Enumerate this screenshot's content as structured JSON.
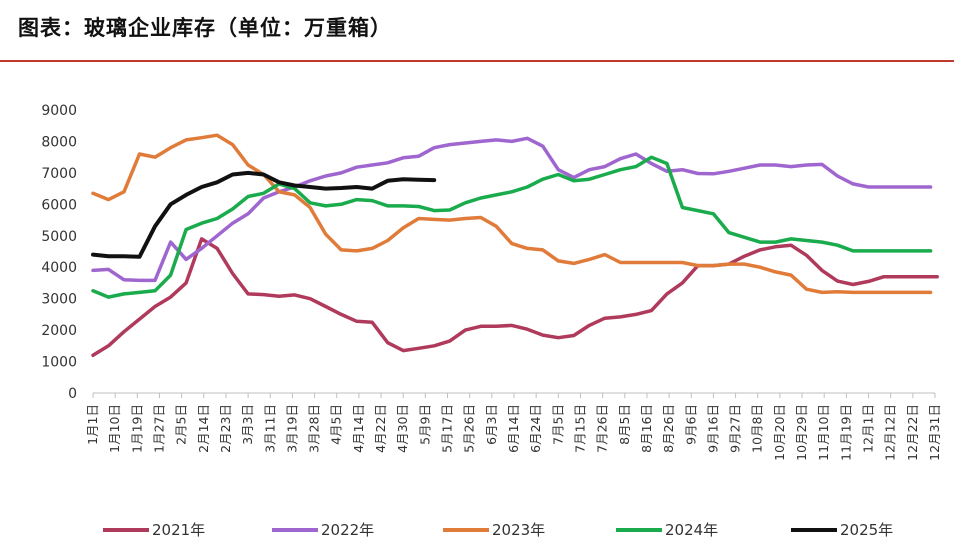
{
  "header": {
    "title": "图表：玻璃企业库存（单位：万重箱）",
    "rule_color": "#c0392b"
  },
  "chart_data": {
    "type": "line",
    "title": "图表：玻璃企业库存（单位：万重箱）",
    "xlabel": "",
    "ylabel": "",
    "ylim": [
      0,
      9000
    ],
    "yticks": [
      0,
      1000,
      2000,
      3000,
      4000,
      5000,
      6000,
      7000,
      8000,
      9000
    ],
    "grid": false,
    "legend_position": "bottom",
    "categories": [
      "1月1日",
      "1月10日",
      "1月19日",
      "1月27日",
      "2月5日",
      "2月14日",
      "2月23日",
      "3月3日",
      "3月11日",
      "3月19日",
      "3月28日",
      "4月5日",
      "4月14日",
      "4月22日",
      "4月30日",
      "5月9日",
      "5月17日",
      "5月26日",
      "6月3日",
      "6月14日",
      "6月24日",
      "7月5日",
      "7月15日",
      "7月26日",
      "8月5日",
      "8月16日",
      "8月26日",
      "9月6日",
      "9月16日",
      "9月27日",
      "10月8日",
      "10月20日",
      "10月29日",
      "11月10日",
      "11月19日",
      "12月1日",
      "12月12日",
      "12月22日",
      "12月31日"
    ],
    "series": [
      {
        "name": "2021年",
        "color": "#b03a5b",
        "x": [
          0,
          0.7,
          1.4,
          2.1,
          2.8,
          3.5,
          4.2,
          4.9,
          5.6,
          6.3,
          7,
          7.7,
          8.4,
          9.1,
          9.8,
          10.5,
          11.2,
          11.9,
          12.6,
          13.3,
          14,
          14.7,
          15.4,
          16.1,
          16.8,
          17.5,
          18.2,
          18.9,
          19.6,
          20.3,
          21,
          21.7,
          22.4,
          23.1,
          23.8,
          24.5,
          25.2,
          25.9,
          26.6,
          27.3,
          28,
          28.7,
          29.4,
          30.1,
          30.8,
          31.5,
          32.2,
          32.9,
          33.6,
          34.3,
          35,
          35.7,
          36.4,
          37.1,
          37.8,
          38.1
        ],
        "y": [
          1200,
          1500,
          1950,
          2350,
          2750,
          3050,
          3500,
          4900,
          4600,
          3800,
          3150,
          3130,
          3080,
          3120,
          3000,
          2750,
          2500,
          2280,
          2250,
          1600,
          1350,
          1420,
          1500,
          1650,
          2000,
          2120,
          2120,
          2150,
          2030,
          1840,
          1760,
          1830,
          2150,
          2380,
          2420,
          2500,
          2620,
          3150,
          3500,
          4050,
          4050,
          4100,
          4350,
          4550,
          4650,
          4700,
          4380,
          3900,
          3560,
          3450,
          3550,
          3700,
          3700,
          3700,
          3700,
          3700
        ]
      },
      {
        "name": "2022年",
        "color": "#a066cf",
        "x": [
          0,
          0.7,
          1.4,
          2.1,
          2.8,
          3.5,
          4.2,
          4.9,
          5.6,
          6.3,
          7,
          7.7,
          8.4,
          9.1,
          9.8,
          10.5,
          11.2,
          11.9,
          12.6,
          13.3,
          14,
          14.7,
          15.4,
          16.1,
          16.8,
          17.5,
          18.2,
          18.9,
          19.6,
          20.3,
          21,
          21.7,
          22.4,
          23.1,
          23.8,
          24.5,
          25.2,
          25.9,
          26.6,
          27.3,
          28,
          28.7,
          29.4,
          30.1,
          30.8,
          31.5,
          32.2,
          32.9,
          33.6,
          34.3,
          35,
          35.7,
          36.4,
          37.1,
          37.8
        ],
        "y": [
          3900,
          3930,
          3600,
          3580,
          3580,
          4800,
          4250,
          4600,
          5000,
          5400,
          5700,
          6200,
          6400,
          6550,
          6750,
          6900,
          7000,
          7180,
          7250,
          7320,
          7480,
          7530,
          7800,
          7900,
          7950,
          8000,
          8050,
          8000,
          8100,
          7850,
          7100,
          6850,
          7100,
          7200,
          7450,
          7600,
          7300,
          7050,
          7100,
          6980,
          6970,
          7050,
          7150,
          7250,
          7250,
          7200,
          7250,
          7270,
          6900,
          6650,
          6550,
          6550,
          6550,
          6550,
          6550
        ]
      },
      {
        "name": "2023年",
        "color": "#e07b39",
        "x": [
          0,
          0.7,
          1.4,
          2.1,
          2.8,
          3.5,
          4.2,
          4.9,
          5.6,
          6.3,
          7,
          7.7,
          8.4,
          9.1,
          9.8,
          10.5,
          11.2,
          11.9,
          12.6,
          13.3,
          14,
          14.7,
          15.4,
          16.1,
          16.8,
          17.5,
          18.2,
          18.9,
          19.6,
          20.3,
          21,
          21.7,
          22.4,
          23.1,
          23.8,
          24.5,
          25.2,
          25.9,
          26.6,
          27.3,
          28,
          28.7,
          29.4,
          30.1,
          30.8,
          31.5,
          32.2,
          32.9,
          33.6,
          34.3,
          35,
          35.7,
          36.4,
          37.1,
          37.8
        ],
        "y": [
          6350,
          6150,
          6400,
          7600,
          7500,
          7800,
          8050,
          8120,
          8200,
          7900,
          7250,
          6950,
          6400,
          6300,
          5900,
          5050,
          4550,
          4520,
          4600,
          4850,
          5250,
          5550,
          5520,
          5500,
          5550,
          5580,
          5300,
          4750,
          4600,
          4550,
          4200,
          4120,
          4250,
          4400,
          4150,
          4150,
          4150,
          4150,
          4150,
          4050,
          4050,
          4100,
          4100,
          4000,
          3850,
          3750,
          3300,
          3200,
          3220,
          3200,
          3200,
          3200,
          3200,
          3200,
          3200
        ]
      },
      {
        "name": "2024年",
        "color": "#19ab4c",
        "x": [
          0,
          0.7,
          1.4,
          2.1,
          2.8,
          3.5,
          4.2,
          4.9,
          5.6,
          6.3,
          7,
          7.7,
          8.4,
          9.1,
          9.8,
          10.5,
          11.2,
          11.9,
          12.6,
          13.3,
          14,
          14.7,
          15.4,
          16.1,
          16.8,
          17.5,
          18.2,
          18.9,
          19.6,
          20.3,
          21,
          21.7,
          22.4,
          23.1,
          23.8,
          24.5,
          25.2,
          25.9,
          26.6,
          27.3,
          28,
          28.7,
          29.4,
          30.1,
          30.8,
          31.5,
          32.2,
          32.9,
          33.6,
          34.3,
          35,
          35.7,
          36.4,
          37.1,
          37.8
        ],
        "y": [
          3250,
          3050,
          3150,
          3200,
          3250,
          3750,
          5200,
          5400,
          5550,
          5850,
          6250,
          6350,
          6650,
          6500,
          6050,
          5950,
          6000,
          6150,
          6120,
          5950,
          5950,
          5930,
          5800,
          5820,
          6050,
          6200,
          6300,
          6400,
          6550,
          6800,
          6950,
          6750,
          6800,
          6950,
          7100,
          7200,
          7500,
          7300,
          5900,
          5800,
          5700,
          5100,
          4950,
          4800,
          4800,
          4900,
          4850,
          4800,
          4700,
          4520,
          4520,
          4520,
          4520,
          4520,
          4520
        ]
      },
      {
        "name": "2025年",
        "color": "#111111",
        "x": [
          0,
          0.7,
          1.4,
          2.1,
          2.8,
          3.5,
          4.2,
          4.9,
          5.6,
          6.3,
          7,
          7.7,
          8.4,
          9.1,
          9.8,
          10.5,
          11.2,
          11.9,
          12.6,
          13.3,
          14,
          14.7,
          15.4
        ],
        "y": [
          4400,
          4350,
          4350,
          4330,
          5300,
          6000,
          6300,
          6550,
          6700,
          6950,
          7000,
          6950,
          6700,
          6600,
          6550,
          6500,
          6520,
          6550,
          6500,
          6750,
          6800,
          6780,
          6770
        ]
      }
    ]
  }
}
